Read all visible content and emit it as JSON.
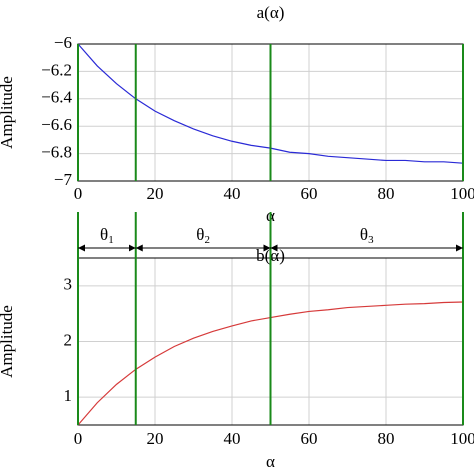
{
  "chart_data": [
    {
      "type": "line",
      "title": "a(α)",
      "xlabel": "α",
      "ylabel": "Amplitude",
      "x": [
        0,
        5,
        10,
        15,
        20,
        25,
        30,
        35,
        40,
        45,
        50,
        55,
        60,
        65,
        70,
        75,
        80,
        85,
        90,
        95,
        100
      ],
      "series": [
        {
          "color": "#2a2ad6",
          "values": [
            -6.0,
            -6.16,
            -6.29,
            -6.4,
            -6.49,
            -6.56,
            -6.62,
            -6.67,
            -6.71,
            -6.74,
            -6.76,
            -6.79,
            -6.8,
            -6.82,
            -6.83,
            -6.84,
            -6.85,
            -6.85,
            -6.86,
            -6.86,
            -6.87
          ]
        }
      ],
      "xlim": [
        0,
        100
      ],
      "xticks": [
        0,
        20,
        40,
        60,
        80,
        100
      ],
      "ylim": [
        -7,
        -6
      ],
      "yticks": [
        {
          "value": -6,
          "label": "−6"
        },
        {
          "value": -6.2,
          "label": "−6.2"
        },
        {
          "value": -6.4,
          "label": "−6.4"
        },
        {
          "value": -6.6,
          "label": "−6.6"
        },
        {
          "value": -6.8,
          "label": "−6.8"
        },
        {
          "value": -7,
          "label": "−7"
        }
      ],
      "grid": true,
      "vlines": [
        0,
        15,
        50,
        100
      ],
      "vline_color": "#1a8a1a"
    },
    {
      "type": "line",
      "title": "b(α)",
      "xlabel": "α",
      "ylabel": "Amplitude",
      "x": [
        0,
        5,
        10,
        15,
        20,
        25,
        30,
        35,
        40,
        45,
        50,
        55,
        60,
        65,
        70,
        75,
        80,
        85,
        90,
        95,
        100
      ],
      "series": [
        {
          "color": "#d63a3a",
          "values": [
            0.5,
            0.9,
            1.23,
            1.5,
            1.72,
            1.91,
            2.06,
            2.18,
            2.28,
            2.37,
            2.43,
            2.49,
            2.54,
            2.57,
            2.61,
            2.63,
            2.65,
            2.67,
            2.68,
            2.7,
            2.71
          ]
        }
      ],
      "xlim": [
        0,
        100
      ],
      "xticks": [
        0,
        20,
        40,
        60,
        80,
        100
      ],
      "ylim": [
        0.5,
        3.5
      ],
      "yticks": [
        1,
        2,
        3
      ],
      "grid": true,
      "vlines": [
        0,
        15,
        50,
        100
      ],
      "vline_color": "#1a8a1a",
      "annotations": [
        {
          "text": "θ",
          "subscript": "1",
          "from": 0,
          "to": 15
        },
        {
          "text": "θ",
          "subscript": "2",
          "from": 15,
          "to": 50
        },
        {
          "text": "θ",
          "subscript": "3",
          "from": 50,
          "to": 100
        }
      ]
    }
  ]
}
